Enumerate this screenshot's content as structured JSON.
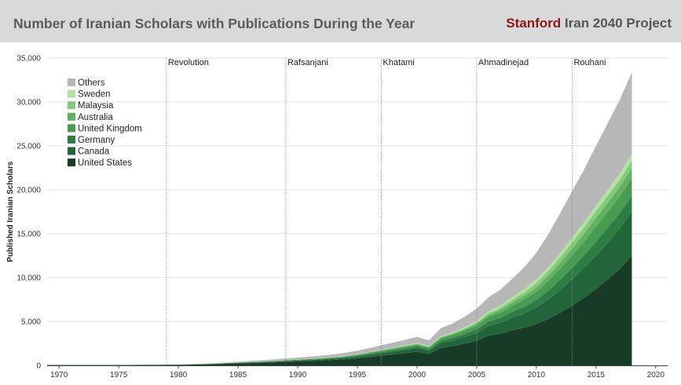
{
  "header": {
    "title": "Number of Iranian Scholars with Publications During the Year",
    "brand_part1": "Stanford",
    "brand_part2": " Iran 2040 Project"
  },
  "chart_data": {
    "type": "area",
    "stacked": true,
    "title": "Number of Iranian Scholars with Publications During the Year",
    "xlabel": "",
    "ylabel": "Published Iranian Scholars",
    "xlim": [
      1969,
      2021
    ],
    "ylim": [
      0,
      35000
    ],
    "x_ticks": [
      1970,
      1975,
      1980,
      1985,
      1990,
      1995,
      2000,
      2005,
      2010,
      2015,
      2020
    ],
    "y_ticks": [
      0,
      5000,
      10000,
      15000,
      20000,
      25000,
      30000,
      35000
    ],
    "y_tick_labels": [
      "0",
      "5,000",
      "10,000",
      "15,000",
      "20,000",
      "25,000",
      "30,000",
      "35,000"
    ],
    "grid": true,
    "legend_placement": "top-left",
    "events": [
      {
        "year": 1979,
        "label": "Revolution"
      },
      {
        "year": 1989,
        "label": "Rafsanjani"
      },
      {
        "year": 1997,
        "label": "Khatami"
      },
      {
        "year": 2005,
        "label": "Ahmadinejad"
      },
      {
        "year": 2013,
        "label": "Rouhani"
      }
    ],
    "x": [
      1969,
      1970,
      1971,
      1972,
      1973,
      1974,
      1975,
      1976,
      1977,
      1978,
      1979,
      1980,
      1981,
      1982,
      1983,
      1984,
      1985,
      1986,
      1987,
      1988,
      1989,
      1990,
      1991,
      1992,
      1993,
      1994,
      1995,
      1996,
      1997,
      1998,
      1999,
      2000,
      2001,
      2002,
      2003,
      2004,
      2005,
      2006,
      2007,
      2008,
      2009,
      2010,
      2011,
      2012,
      2013,
      2014,
      2015,
      2016,
      2017,
      2018
    ],
    "series": [
      {
        "name": "United States",
        "color": "#173b26",
        "values": [
          30,
          30,
          30,
          30,
          30,
          30,
          30,
          30,
          40,
          40,
          50,
          60,
          80,
          100,
          140,
          180,
          220,
          260,
          300,
          340,
          400,
          450,
          500,
          560,
          620,
          700,
          800,
          950,
          1100,
          1250,
          1400,
          1550,
          1300,
          2000,
          2200,
          2500,
          2800,
          3400,
          3600,
          4000,
          4300,
          4700,
          5300,
          6000,
          6800,
          7700,
          8700,
          9800,
          11000,
          12500
        ]
      },
      {
        "name": "Canada",
        "color": "#23653a",
        "values": [
          10,
          10,
          10,
          10,
          10,
          10,
          10,
          10,
          10,
          10,
          15,
          15,
          20,
          25,
          30,
          40,
          50,
          60,
          70,
          80,
          90,
          100,
          110,
          120,
          140,
          160,
          200,
          240,
          280,
          320,
          360,
          400,
          360,
          550,
          650,
          750,
          900,
          1100,
          1250,
          1450,
          1650,
          1900,
          2200,
          2600,
          3000,
          3400,
          3800,
          4200,
          4600,
          5000
        ]
      },
      {
        "name": "Germany",
        "color": "#2e7d45",
        "values": [
          5,
          5,
          5,
          5,
          5,
          5,
          5,
          5,
          5,
          5,
          8,
          8,
          10,
          12,
          15,
          20,
          25,
          30,
          35,
          40,
          45,
          50,
          55,
          60,
          70,
          80,
          100,
          120,
          140,
          160,
          180,
          200,
          180,
          260,
          300,
          350,
          420,
          500,
          560,
          650,
          750,
          850,
          1000,
          1150,
          1300,
          1450,
          1600,
          1700,
          1750,
          1800
        ]
      },
      {
        "name": "United Kingdom",
        "color": "#4a9b52",
        "values": [
          5,
          5,
          5,
          5,
          5,
          5,
          5,
          5,
          5,
          5,
          8,
          8,
          10,
          12,
          15,
          20,
          25,
          30,
          35,
          40,
          45,
          50,
          55,
          60,
          70,
          80,
          100,
          120,
          140,
          160,
          180,
          200,
          180,
          270,
          310,
          360,
          430,
          520,
          600,
          700,
          800,
          950,
          1100,
          1250,
          1400,
          1550,
          1700,
          1800,
          1900,
          2000
        ]
      },
      {
        "name": "Australia",
        "color": "#62b061",
        "values": [
          2,
          2,
          2,
          2,
          2,
          2,
          2,
          2,
          2,
          2,
          3,
          3,
          4,
          5,
          6,
          8,
          10,
          12,
          14,
          16,
          18,
          20,
          22,
          25,
          30,
          35,
          40,
          50,
          60,
          70,
          80,
          90,
          80,
          120,
          140,
          160,
          200,
          250,
          300,
          350,
          420,
          500,
          600,
          700,
          800,
          900,
          1000,
          1050,
          1100,
          1150
        ]
      },
      {
        "name": "Malaysia",
        "color": "#85c97a",
        "values": [
          0,
          0,
          0,
          0,
          0,
          0,
          0,
          0,
          0,
          0,
          0,
          0,
          0,
          0,
          0,
          0,
          0,
          0,
          0,
          0,
          0,
          0,
          0,
          0,
          0,
          0,
          0,
          0,
          0,
          5,
          10,
          15,
          15,
          30,
          50,
          80,
          120,
          180,
          250,
          330,
          420,
          500,
          560,
          620,
          680,
          720,
          760,
          800,
          820,
          850
        ]
      },
      {
        "name": "Sweden",
        "color": "#b4e0a4",
        "values": [
          2,
          2,
          2,
          2,
          2,
          2,
          2,
          2,
          2,
          2,
          3,
          3,
          4,
          5,
          6,
          8,
          10,
          12,
          14,
          16,
          18,
          20,
          22,
          25,
          30,
          35,
          40,
          50,
          60,
          70,
          80,
          90,
          80,
          120,
          140,
          160,
          190,
          230,
          270,
          320,
          370,
          420,
          470,
          520,
          560,
          600,
          640,
          680,
          720,
          760
        ]
      },
      {
        "name": "Others",
        "color": "#b7b7b7",
        "values": [
          10,
          10,
          10,
          10,
          10,
          10,
          10,
          10,
          10,
          10,
          20,
          20,
          30,
          40,
          50,
          60,
          80,
          100,
          120,
          150,
          180,
          200,
          230,
          260,
          300,
          350,
          400,
          450,
          500,
          560,
          620,
          700,
          650,
          900,
          1000,
          1200,
          1400,
          1600,
          1800,
          2100,
          2500,
          3000,
          3700,
          4500,
          5300,
          6000,
          6800,
          7600,
          8400,
          9300
        ]
      }
    ]
  }
}
